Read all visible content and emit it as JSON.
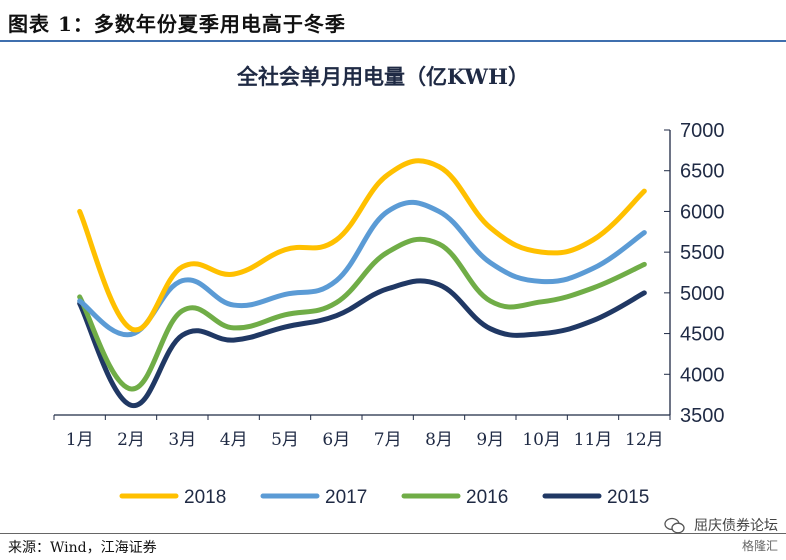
{
  "figure": {
    "title": "图表 1：多数年份夏季用电高于冬季",
    "source": "来源：Wind，江海证券",
    "watermark_line1": "屈庆债券论坛",
    "watermark_line2": "格隆汇"
  },
  "chart_data": {
    "type": "line",
    "title": "全社会单月用电量（亿KWH）",
    "xlabel": "",
    "ylabel": "",
    "categories": [
      "1月",
      "2月",
      "3月",
      "4月",
      "5月",
      "6月",
      "7月",
      "8月",
      "9月",
      "10月",
      "11月",
      "12月"
    ],
    "ylim": [
      3500,
      7000
    ],
    "yticks": [
      3500,
      4000,
      4500,
      5000,
      5500,
      6000,
      6500,
      7000
    ],
    "y_axis_side": "right",
    "grid": false,
    "legend_position": "bottom",
    "series": [
      {
        "name": "2018",
        "color": "#ffc000",
        "values": [
          6000,
          4560,
          5320,
          5230,
          5530,
          5650,
          6450,
          6550,
          5800,
          5500,
          5650,
          6250
        ]
      },
      {
        "name": "2017",
        "color": "#5b9bd5",
        "values": [
          4900,
          4490,
          5150,
          4850,
          4980,
          5150,
          6000,
          6000,
          5370,
          5140,
          5300,
          5740
        ]
      },
      {
        "name": "2016",
        "color": "#70ad47",
        "values": [
          4950,
          3820,
          4780,
          4570,
          4730,
          4880,
          5500,
          5600,
          4900,
          4890,
          5060,
          5350
        ]
      },
      {
        "name": "2015",
        "color": "#203864",
        "values": [
          4870,
          3620,
          4480,
          4420,
          4580,
          4720,
          5050,
          5100,
          4560,
          4500,
          4660,
          5000
        ]
      }
    ]
  }
}
